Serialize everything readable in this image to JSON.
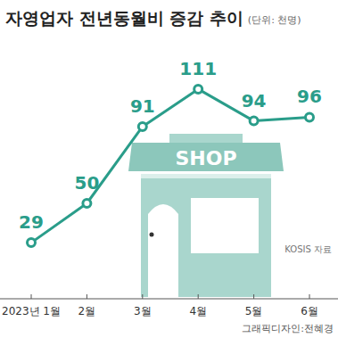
{
  "chart_data": {
    "type": "line",
    "title": "자영업자 전년동월비 증감 추이",
    "subtitle": "(단위: 천명)",
    "categories": [
      "2023년 1월",
      "2월",
      "3월",
      "4월",
      "5월",
      "6월"
    ],
    "values": [
      29,
      50,
      91,
      111,
      94,
      96
    ],
    "color": "#2a9d8a",
    "marker": "circle",
    "line_style": "solid",
    "ylim": [
      0,
      130
    ],
    "tick_labels": "x",
    "grid": false,
    "data_labels": true,
    "icon_text": "SHOP",
    "source": "KOSIS 자료",
    "credit": "그래픽디자인:전혜경"
  }
}
